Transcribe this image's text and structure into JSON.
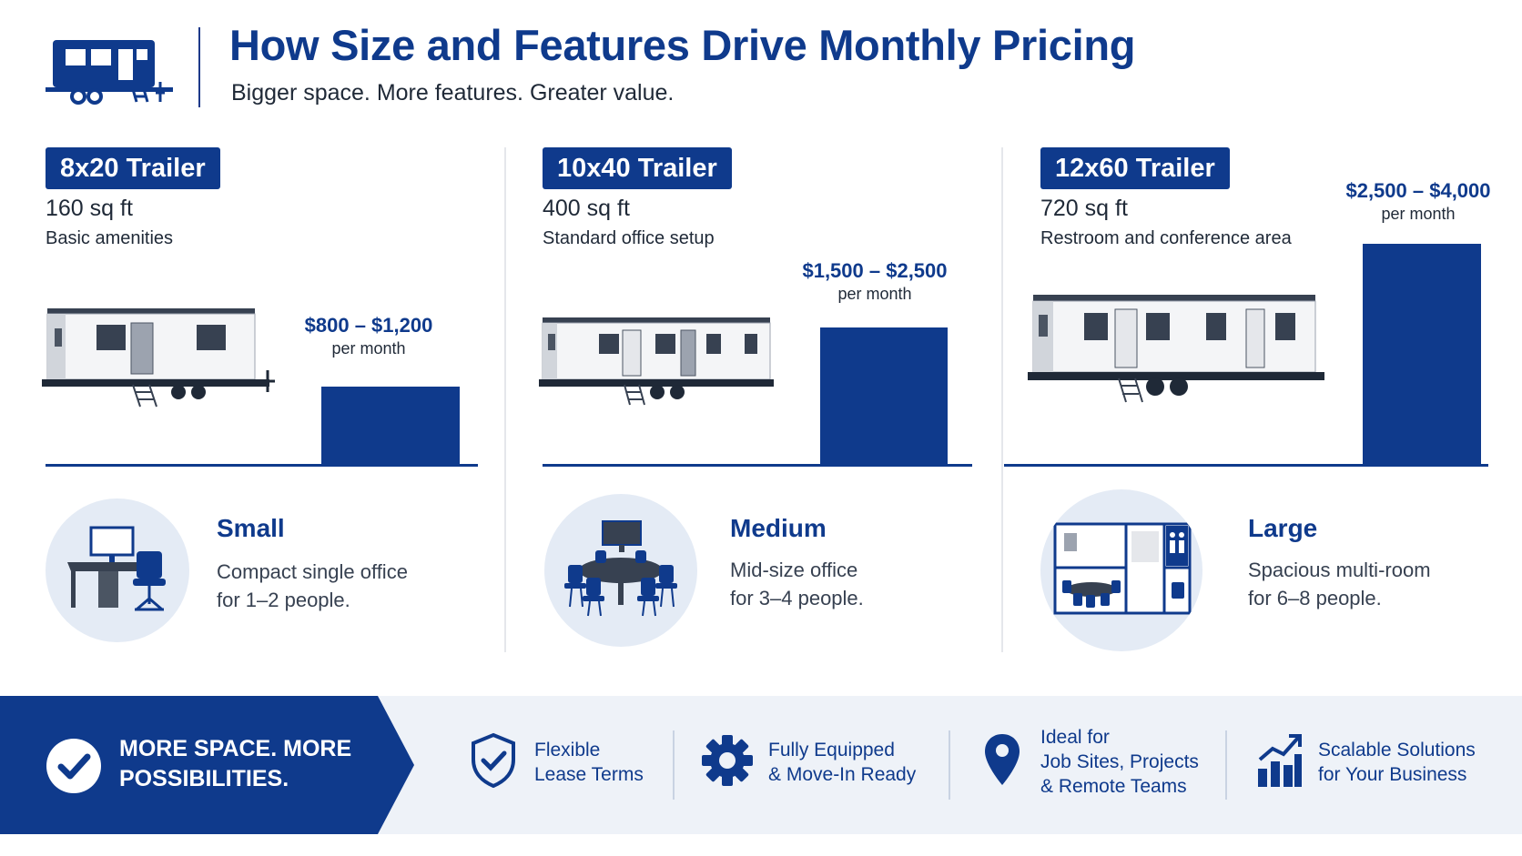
{
  "header": {
    "title": "How Size and Features Drive Monthly Pricing",
    "subtitle": "Bigger space. More features. Greater value.",
    "logo_icon": "trailer-icon"
  },
  "colors": {
    "brand": "#0f3a8c",
    "circle_bg": "#e4ebf5",
    "footer_bg": "#eef2f8"
  },
  "trailers": [
    {
      "badge": "8x20 Trailer",
      "sqft": "160 sq ft",
      "amenities": "Basic amenities",
      "price_range": "$800 – $1,200",
      "per": "per month",
      "size": "Small",
      "desc_line1": "Compact single office",
      "desc_line2": "for 1–2 people.",
      "icon": "desk-icon"
    },
    {
      "badge": "10x40 Trailer",
      "sqft": "400 sq ft",
      "amenities": "Standard office setup",
      "price_range": "$1,500 – $2,500",
      "per": "per month",
      "size": "Medium",
      "desc_line1": "Mid-size office",
      "desc_line2": "for 3–4 people.",
      "icon": "meeting-table-icon"
    },
    {
      "badge": "12x60 Trailer",
      "sqft": "720 sq ft",
      "amenities": "Restroom and conference area",
      "price_range": "$2,500 – $4,000",
      "per": "per month",
      "size": "Large",
      "desc_line1": "Spacious multi-room",
      "desc_line2": "for 6–8 people.",
      "icon": "floor-plan-icon"
    }
  ],
  "footer": {
    "banner": "MORE SPACE. MORE POSSIBILITIES.",
    "features": [
      {
        "text": "Flexible\nLease Terms",
        "icon": "shield-check-icon"
      },
      {
        "text": "Fully Equipped\n& Move-In Ready",
        "icon": "gear-icon"
      },
      {
        "text": "Ideal for\nJob Sites, Projects\n& Remote Teams",
        "icon": "location-pin-icon"
      },
      {
        "text": "Scalable Solutions\nfor Your Business",
        "icon": "growth-chart-icon"
      }
    ]
  }
}
